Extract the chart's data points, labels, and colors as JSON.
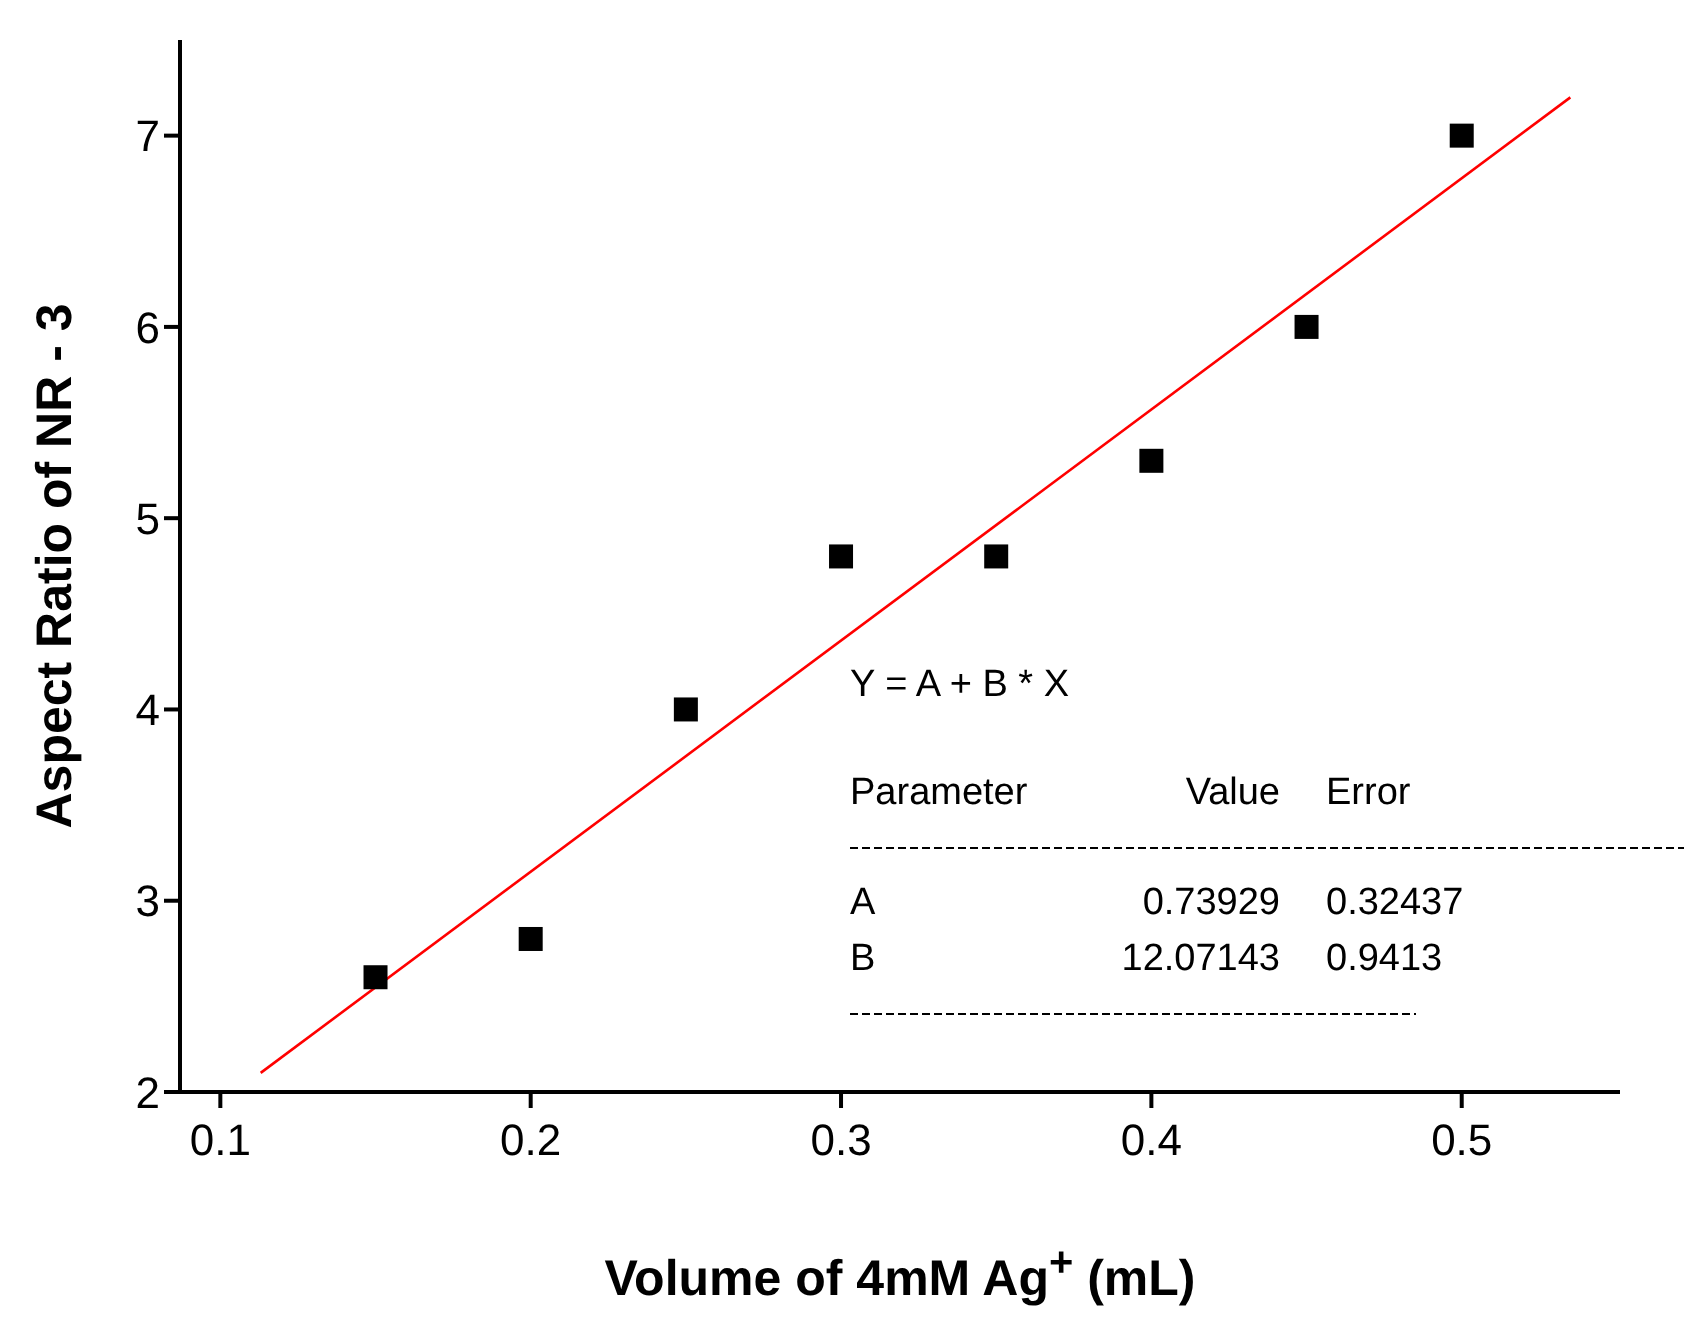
{
  "chart_data": {
    "type": "scatter",
    "xlabel": "Volume of 4mM Ag$^{+}$ (mL)",
    "ylabel": "Aspect Ratio of NR - 3",
    "xlim": [
      0.087,
      0.551
    ],
    "xticks": [
      0.1,
      0.2,
      0.3,
      0.4,
      0.5
    ],
    "ylim": [
      2,
      7.5
    ],
    "yticks": [
      2,
      3,
      4,
      5,
      6,
      7
    ],
    "grid": false,
    "legend": false,
    "series": [
      {
        "color": "#000000",
        "marker": "square",
        "x": [
          0.15,
          0.2,
          0.25,
          0.3,
          0.35,
          0.4,
          0.45,
          0.5
        ],
        "values": [
          2.6,
          2.8,
          4.0,
          4.8,
          4.8,
          5.3,
          6.0,
          7.0
        ]
      },
      {
        "type": "line",
        "color": "#ff0000",
        "marker": "none",
        "x": [
          0.113,
          0.535
        ],
        "values": [
          2.1,
          7.2
        ]
      }
    ],
    "annotations": [
      "Y = A + B * X",
      "Parameter",
      "Value",
      "Error",
      "A",
      "0.73929",
      "0.32437",
      "B",
      "12.07143",
      "0.9413"
    ]
  }
}
